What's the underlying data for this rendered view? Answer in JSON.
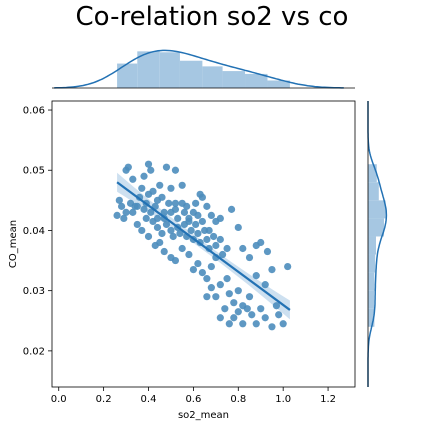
{
  "chart_data": {
    "type": "scatter",
    "title": "Co-relation so2 vs co",
    "xlabel": "so2_mean",
    "ylabel": "CO_mean",
    "xlim": [
      -0.03,
      1.32
    ],
    "ylim": [
      0.014,
      0.0615
    ],
    "xticks": [
      "0.0",
      "0.2",
      "0.4",
      "0.6",
      "0.8",
      "1.0",
      "1.2"
    ],
    "yticks": [
      "0.02",
      "0.03",
      "0.04",
      "0.05",
      "0.06"
    ],
    "grid": false,
    "colors": {
      "points": "#4c8dbd",
      "line": "#2372b4",
      "band": "#b8d3ea",
      "hist": "#a6c7e2",
      "kde": "#2372b4"
    },
    "points": [
      [
        0.3,
        0.05
      ],
      [
        0.31,
        0.0505
      ],
      [
        0.33,
        0.0485
      ],
      [
        0.38,
        0.049
      ],
      [
        0.4,
        0.051
      ],
      [
        0.41,
        0.05
      ],
      [
        0.48,
        0.0505
      ],
      [
        0.52,
        0.05
      ],
      [
        0.45,
        0.0475
      ],
      [
        0.5,
        0.047
      ],
      [
        0.55,
        0.0475
      ],
      [
        0.37,
        0.047
      ],
      [
        0.4,
        0.046
      ],
      [
        0.42,
        0.0465
      ],
      [
        0.27,
        0.045
      ],
      [
        0.28,
        0.044
      ],
      [
        0.3,
        0.043
      ],
      [
        0.26,
        0.0425
      ],
      [
        0.32,
        0.0445
      ],
      [
        0.34,
        0.044
      ],
      [
        0.36,
        0.0455
      ],
      [
        0.38,
        0.0435
      ],
      [
        0.39,
        0.0445
      ],
      [
        0.41,
        0.043
      ],
      [
        0.43,
        0.044
      ],
      [
        0.44,
        0.045
      ],
      [
        0.46,
        0.0455
      ],
      [
        0.47,
        0.043
      ],
      [
        0.49,
        0.0445
      ],
      [
        0.5,
        0.043
      ],
      [
        0.52,
        0.0435
      ],
      [
        0.53,
        0.042
      ],
      [
        0.55,
        0.0445
      ],
      [
        0.56,
        0.043
      ],
      [
        0.57,
        0.044
      ],
      [
        0.58,
        0.042
      ],
      [
        0.6,
        0.043
      ],
      [
        0.61,
        0.0445
      ],
      [
        0.62,
        0.0425
      ],
      [
        0.63,
        0.046
      ],
      [
        0.64,
        0.0455
      ],
      [
        0.66,
        0.044
      ],
      [
        0.68,
        0.0425
      ],
      [
        0.7,
        0.0415
      ],
      [
        0.72,
        0.042
      ],
      [
        0.35,
        0.041
      ],
      [
        0.37,
        0.04
      ],
      [
        0.42,
        0.0415
      ],
      [
        0.44,
        0.0405
      ],
      [
        0.46,
        0.0395
      ],
      [
        0.48,
        0.041
      ],
      [
        0.5,
        0.04
      ],
      [
        0.51,
        0.039
      ],
      [
        0.53,
        0.0405
      ],
      [
        0.54,
        0.0395
      ],
      [
        0.56,
        0.041
      ],
      [
        0.57,
        0.039
      ],
      [
        0.59,
        0.04
      ],
      [
        0.6,
        0.0385
      ],
      [
        0.62,
        0.0395
      ],
      [
        0.63,
        0.038
      ],
      [
        0.65,
        0.04
      ],
      [
        0.66,
        0.0385
      ],
      [
        0.67,
        0.037
      ],
      [
        0.69,
        0.039
      ],
      [
        0.7,
        0.0375
      ],
      [
        0.72,
        0.0385
      ],
      [
        0.73,
        0.036
      ],
      [
        0.75,
        0.037
      ],
      [
        0.77,
        0.0435
      ],
      [
        0.8,
        0.0405
      ],
      [
        0.43,
        0.0375
      ],
      [
        0.47,
        0.0365
      ],
      [
        0.5,
        0.0355
      ],
      [
        0.52,
        0.035
      ],
      [
        0.58,
        0.036
      ],
      [
        0.62,
        0.0345
      ],
      [
        0.64,
        0.033
      ],
      [
        0.66,
        0.032
      ],
      [
        0.68,
        0.034
      ],
      [
        0.7,
        0.0355
      ],
      [
        0.6,
        0.0335
      ],
      [
        0.55,
        0.037
      ],
      [
        0.45,
        0.038
      ],
      [
        0.4,
        0.039
      ],
      [
        0.82,
        0.037
      ],
      [
        0.85,
        0.0355
      ],
      [
        0.88,
        0.0375
      ],
      [
        0.9,
        0.038
      ],
      [
        0.93,
        0.0365
      ],
      [
        0.95,
        0.0335
      ],
      [
        1.02,
        0.034
      ],
      [
        0.88,
        0.0325
      ],
      [
        0.92,
        0.031
      ],
      [
        0.8,
        0.03
      ],
      [
        0.85,
        0.029
      ],
      [
        0.78,
        0.028
      ],
      [
        0.82,
        0.0275
      ],
      [
        0.76,
        0.0295
      ],
      [
        0.72,
        0.031
      ],
      [
        0.75,
        0.032
      ],
      [
        0.68,
        0.0305
      ],
      [
        0.66,
        0.029
      ],
      [
        0.7,
        0.029
      ],
      [
        0.78,
        0.0255
      ],
      [
        0.82,
        0.0245
      ],
      [
        0.86,
        0.026
      ],
      [
        0.88,
        0.0245
      ],
      [
        0.9,
        0.027
      ],
      [
        0.92,
        0.0255
      ],
      [
        0.95,
        0.024
      ],
      [
        0.98,
        0.026
      ],
      [
        1.0,
        0.0245
      ],
      [
        0.76,
        0.0245
      ],
      [
        0.72,
        0.0255
      ],
      [
        0.97,
        0.0275
      ],
      [
        0.84,
        0.027
      ],
      [
        0.8,
        0.0265
      ],
      [
        0.74,
        0.027
      ],
      [
        0.58,
        0.0415
      ],
      [
        0.52,
        0.0445
      ],
      [
        0.47,
        0.042
      ],
      [
        0.44,
        0.042
      ],
      [
        0.39,
        0.042
      ],
      [
        0.33,
        0.043
      ],
      [
        0.29,
        0.042
      ],
      [
        0.35,
        0.044
      ],
      [
        0.64,
        0.0415
      ],
      [
        0.61,
        0.041
      ],
      [
        0.67,
        0.04
      ]
    ],
    "regression": {
      "x": [
        0.26,
        1.03
      ],
      "y": [
        0.048,
        0.0268
      ]
    },
    "top_hist": {
      "edges": [
        0.26,
        0.35,
        0.45,
        0.54,
        0.64,
        0.73,
        0.83,
        0.93,
        1.03
      ],
      "counts": [
        0.52,
        0.78,
        0.76,
        0.58,
        0.46,
        0.36,
        0.3,
        0.16
      ]
    },
    "right_hist": {
      "edges": [
        0.024,
        0.027,
        0.03,
        0.033,
        0.036,
        0.039,
        0.042,
        0.045,
        0.048,
        0.051
      ],
      "counts": [
        0.32,
        0.3,
        0.32,
        0.36,
        0.4,
        0.8,
        0.88,
        0.54,
        0.44
      ]
    }
  }
}
